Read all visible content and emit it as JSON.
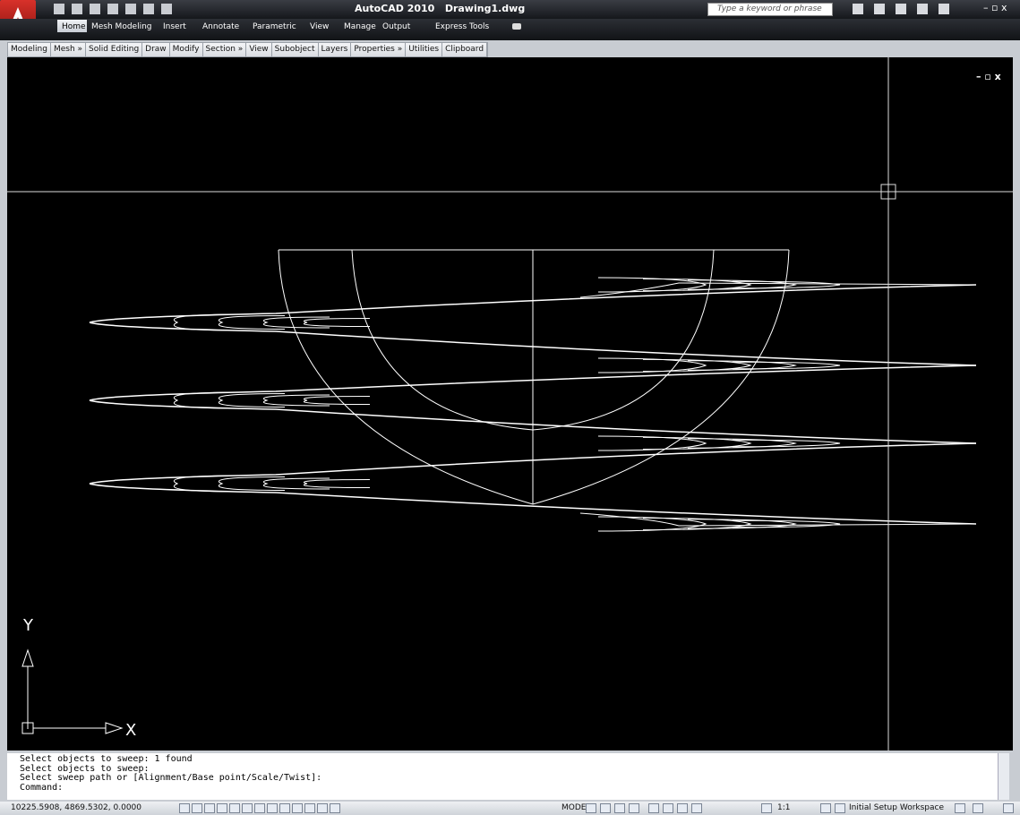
{
  "title_bar": {
    "app_title": "AutoCAD 2010",
    "document": "Drawing1.dwg",
    "search_placeholder": "Type a keyword or phrase"
  },
  "ribbon_tabs": [
    "Home",
    "Mesh Modeling",
    "Insert",
    "Annotate",
    "Parametric",
    "View",
    "Manage",
    "Output",
    "Express Tools"
  ],
  "ribbon_panels": [
    "Modeling",
    "Mesh »",
    "Solid Editing",
    "Draw",
    "Modify",
    "Section »",
    "View",
    "Subobject",
    "Layers",
    "Properties »",
    "Utilities",
    "Clipboard"
  ],
  "ucs": {
    "y_label": "Y",
    "x_label": "X"
  },
  "command_history": [
    "Select objects to sweep: 1 found",
    "Select objects to sweep:",
    "Select sweep path or [Alignment/Base point/Scale/Twist]:"
  ],
  "command_prompt": "Command:",
  "status_bar": {
    "coordinates": "10225.5908, 4869.5302, 0.0000",
    "space": "MODEL",
    "annotation_scale": "1:1",
    "workspace": "Initial Setup Workspace"
  }
}
